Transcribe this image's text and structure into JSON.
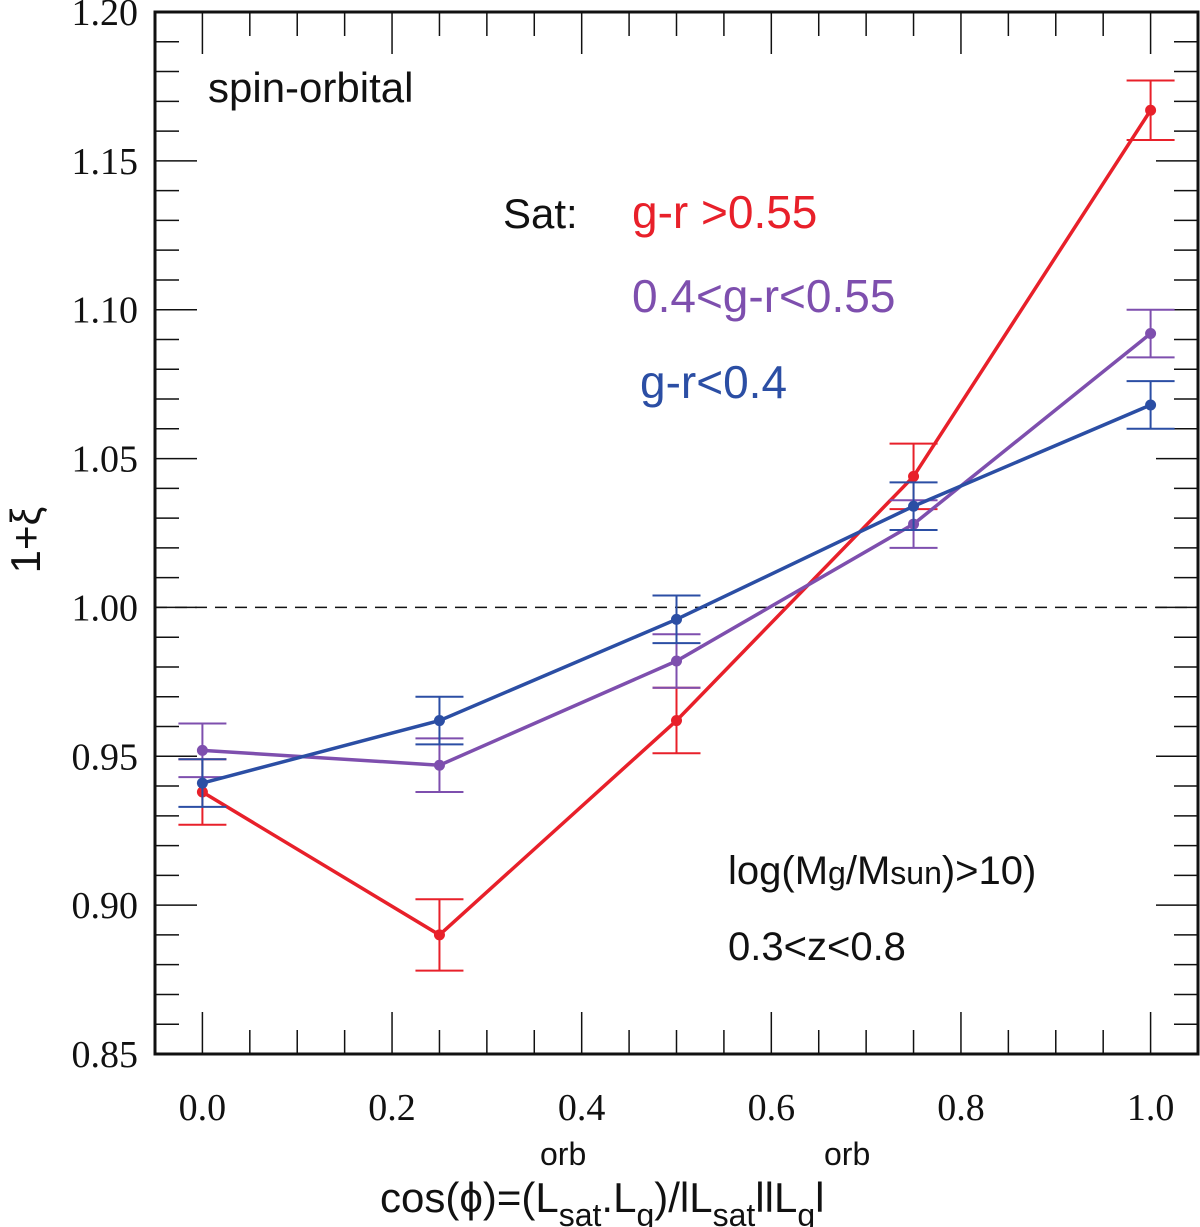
{
  "chart_data": {
    "type": "line",
    "title": "spin-orbital",
    "x": [
      0.0,
      0.25,
      0.5,
      0.75,
      1.0
    ],
    "xlim": [
      -0.05,
      1.05
    ],
    "ylim": [
      0.85,
      1.2
    ],
    "x_ticks": [
      "0.0",
      "0.2",
      "0.4",
      "0.6",
      "0.8",
      "1.0"
    ],
    "x_tick_values": [
      0.0,
      0.2,
      0.4,
      0.6,
      0.8,
      1.0
    ],
    "y_ticks": [
      "0.85",
      "0.90",
      "0.95",
      "1.00",
      "1.05",
      "1.10",
      "1.15",
      "1.20"
    ],
    "y_tick_values": [
      0.85,
      0.9,
      0.95,
      1.0,
      1.05,
      1.1,
      1.15,
      1.2
    ],
    "ylabel": "1+ξ",
    "xlabel": {
      "pre": "cos(ϕ)=(L",
      "sup1": "orb",
      "sub1": "sat",
      "mid": ".L",
      "sub2": "g",
      "mid2": ")/lL",
      "sup2": "orb",
      "sub3": "sat",
      "mid3": "llL",
      "sub4": "g",
      "post": "l"
    },
    "reference_line": {
      "y": 1.0,
      "style": "dashed"
    },
    "legend": {
      "prefix": "Sat:",
      "placement": "top-center"
    },
    "annotations": {
      "mass_pre": "log(M",
      "mass_sub1": "g",
      "mass_mid": "/M",
      "mass_sub2": "sun",
      "mass_post": ")>10)",
      "redshift": "0.3<z<0.8"
    },
    "series": [
      {
        "name": "g-r >0.55",
        "color": "#e8202a",
        "values": [
          0.938,
          0.89,
          0.962,
          1.044,
          1.167
        ],
        "errors": [
          0.011,
          0.012,
          0.011,
          0.011,
          0.01
        ]
      },
      {
        "name": "0.4<g-r<0.55",
        "color": "#7e4fae",
        "values": [
          0.952,
          0.947,
          0.982,
          1.028,
          1.092
        ],
        "errors": [
          0.009,
          0.009,
          0.009,
          0.008,
          0.008
        ]
      },
      {
        "name": "g-r<0.4",
        "color": "#2b4ea4",
        "values": [
          0.941,
          0.962,
          0.996,
          1.034,
          1.068
        ],
        "errors": [
          0.008,
          0.008,
          0.008,
          0.008,
          0.008
        ]
      }
    ]
  }
}
